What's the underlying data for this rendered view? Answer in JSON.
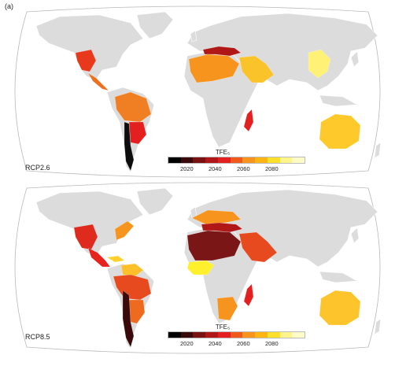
{
  "figure": {
    "label": "(a)"
  },
  "colors": {
    "land": "#dcdcdc",
    "border": "#ffffff",
    "ocean": "#ffffff",
    "outline": "#b8b8b8",
    "scale": [
      "#000000",
      "#3a0a0a",
      "#7a1212",
      "#b01818",
      "#e41f1f",
      "#ef5a1a",
      "#f7941d",
      "#fdb515",
      "#fde02c",
      "#fff58a",
      "#fffbc8"
    ]
  },
  "legend": {
    "title": "TFE₅",
    "ticks": [
      "2020",
      "2040",
      "2060",
      "2080"
    ]
  },
  "panels": [
    {
      "scenario": "RCP2.6",
      "regions": [
        {
          "name": "western-north-america",
          "color": "#e8391d"
        },
        {
          "name": "central-america",
          "color": "#ee6f1e"
        },
        {
          "name": "amazon",
          "color": "#ef7f22"
        },
        {
          "name": "southern-south-america",
          "color": "#e41f1f"
        },
        {
          "name": "southwest-south-america",
          "color": "#0d0d0d"
        },
        {
          "name": "southern-europe",
          "color": "#b01818"
        },
        {
          "name": "sahara",
          "color": "#f7941d"
        },
        {
          "name": "western-asia",
          "color": "#fbc32a"
        },
        {
          "name": "east-asia",
          "color": "#fff176"
        },
        {
          "name": "madagascar",
          "color": "#e41f1f"
        },
        {
          "name": "australia",
          "color": "#fdc92b"
        }
      ]
    },
    {
      "scenario": "RCP8.5",
      "regions": [
        {
          "name": "western-north-america",
          "color": "#df2a1e"
        },
        {
          "name": "central-america",
          "color": "#e6231e"
        },
        {
          "name": "eastern-north-america",
          "color": "#f7941d"
        },
        {
          "name": "caribbean",
          "color": "#fdd02c"
        },
        {
          "name": "northern-south-america",
          "color": "#fdc02a"
        },
        {
          "name": "amazon",
          "color": "#e84a1f"
        },
        {
          "name": "southern-south-america",
          "color": "#ee6a1e"
        },
        {
          "name": "southwest-south-america",
          "color": "#3a0a0a"
        },
        {
          "name": "northern-europe",
          "color": "#f7941d"
        },
        {
          "name": "southern-europe",
          "color": "#b01818"
        },
        {
          "name": "sahara",
          "color": "#7a1616"
        },
        {
          "name": "western-asia",
          "color": "#e84a1f"
        },
        {
          "name": "west-africa",
          "color": "#fff02e"
        },
        {
          "name": "southern-africa",
          "color": "#f7941d"
        },
        {
          "name": "madagascar",
          "color": "#e41f1f"
        },
        {
          "name": "australia",
          "color": "#fdc52b"
        }
      ]
    }
  ]
}
